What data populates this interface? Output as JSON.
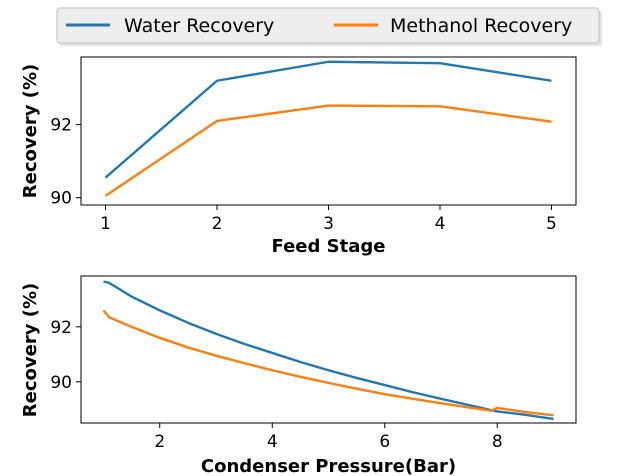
{
  "legend": {
    "placement": "top-center",
    "entries": [
      {
        "label": "Water Recovery",
        "color": "#1f77b4"
      },
      {
        "label": "Methanol Recovery",
        "color": "#ff7f0e"
      }
    ]
  },
  "chart_data": [
    {
      "type": "line",
      "xlabel": "Feed Stage",
      "ylabel": "Recovery (%)",
      "xlim": [
        0.78,
        5.22
      ],
      "ylim": [
        89.8,
        93.85
      ],
      "xticks": [
        1,
        2,
        3,
        4,
        5
      ],
      "yticks": [
        90,
        92
      ],
      "grid": false,
      "series": [
        {
          "name": "Water Recovery",
          "color": "#1f77b4",
          "x": [
            1,
            2,
            3,
            4,
            5
          ],
          "y": [
            90.55,
            93.2,
            93.72,
            93.68,
            93.2
          ]
        },
        {
          "name": "Methanol Recovery",
          "color": "#ff7f0e",
          "x": [
            1,
            2,
            3,
            4,
            5
          ],
          "y": [
            90.05,
            92.1,
            92.52,
            92.5,
            92.08
          ]
        }
      ]
    },
    {
      "type": "line",
      "xlabel": "Condenser Pressure(Bar)",
      "ylabel": "Recovery (%)",
      "xlim": [
        0.6,
        9.4
      ],
      "ylim": [
        88.5,
        93.85
      ],
      "xticks": [
        2,
        4,
        6,
        8
      ],
      "yticks": [
        90,
        92
      ],
      "grid": false,
      "series": [
        {
          "name": "Water Recovery",
          "color": "#1f77b4",
          "x": [
            1,
            1.1,
            1.5,
            2,
            2.5,
            3,
            3.5,
            4,
            4.5,
            5,
            5.5,
            6,
            6.5,
            7,
            7.5,
            8,
            8.5,
            9
          ],
          "y": [
            93.65,
            93.6,
            93.1,
            92.6,
            92.15,
            91.75,
            91.38,
            91.05,
            90.72,
            90.42,
            90.14,
            89.88,
            89.62,
            89.38,
            89.15,
            88.92,
            88.8,
            88.65
          ]
        },
        {
          "name": "Methanol Recovery",
          "color": "#ff7f0e",
          "x": [
            1,
            1.1,
            1.5,
            2,
            2.5,
            3,
            3.5,
            4,
            4.5,
            5,
            5.5,
            6,
            6.5,
            7,
            7.5,
            7.9,
            8,
            8.5,
            9
          ],
          "y": [
            92.6,
            92.35,
            92.0,
            91.6,
            91.25,
            90.95,
            90.68,
            90.42,
            90.18,
            89.96,
            89.75,
            89.55,
            89.38,
            89.22,
            89.06,
            88.95,
            89.05,
            88.9,
            88.78
          ]
        }
      ]
    }
  ]
}
